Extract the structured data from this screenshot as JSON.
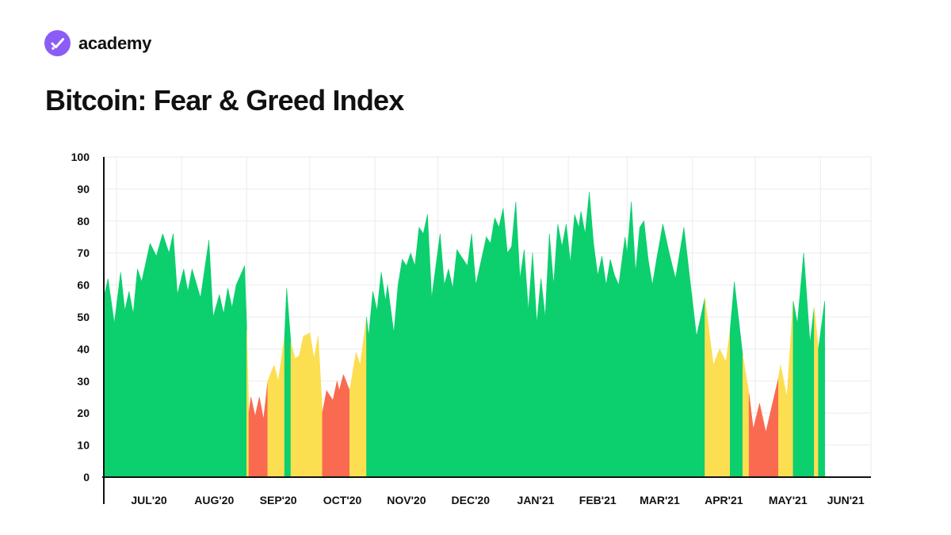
{
  "brand": {
    "name": "academy",
    "logo_icon": "checkmark-circle-icon",
    "logo_color": "#8b5cf6"
  },
  "page": {
    "title": "Bitcoin: Fear & Greed Index"
  },
  "colors": {
    "greed": "#0ccf6e",
    "neutral": "#fcde51",
    "fear": "#fa6a51",
    "grid": "#ebebeb",
    "axis": "#111111"
  },
  "chart_data": {
    "type": "area",
    "title": "Bitcoin: Fear & Greed Index",
    "xlabel": "",
    "ylabel": "",
    "ylim": [
      0,
      100
    ],
    "yticks": [
      "0",
      "10",
      "20",
      "30",
      "40",
      "50",
      "60",
      "70",
      "80",
      "90",
      "100"
    ],
    "xticks": [
      "JUL'20",
      "AUG'20",
      "SEP'20",
      "OCT'20",
      "NOV'20",
      "DEC'20",
      "JAN'21",
      "FEB'21",
      "MAR'21",
      "APR'21",
      "MAY'21",
      "JUN'21"
    ],
    "xlim": [
      "2020-06-25",
      "2021-06-25"
    ],
    "grid": true,
    "color_rule": "Approximate coloring: green above 47, yellow 30-47, red below 30",
    "series": [
      {
        "points": [
          [
            "2020-06-25",
            56
          ],
          [
            "2020-06-27",
            62
          ],
          [
            "2020-06-30",
            48
          ],
          [
            "2020-07-03",
            64
          ],
          [
            "2020-07-05",
            52
          ],
          [
            "2020-07-07",
            58
          ],
          [
            "2020-07-09",
            51
          ],
          [
            "2020-07-11",
            65
          ],
          [
            "2020-07-13",
            61
          ],
          [
            "2020-07-17",
            73
          ],
          [
            "2020-07-20",
            69
          ],
          [
            "2020-07-23",
            76
          ],
          [
            "2020-07-26",
            70
          ],
          [
            "2020-07-28",
            76
          ],
          [
            "2020-07-30",
            57
          ],
          [
            "2020-08-02",
            65
          ],
          [
            "2020-08-04",
            58
          ],
          [
            "2020-08-06",
            65
          ],
          [
            "2020-08-10",
            56
          ],
          [
            "2020-08-14",
            74
          ],
          [
            "2020-08-16",
            50
          ],
          [
            "2020-08-19",
            57
          ],
          [
            "2020-08-21",
            51
          ],
          [
            "2020-08-23",
            59
          ],
          [
            "2020-08-25",
            53
          ],
          [
            "2020-08-27",
            60
          ],
          [
            "2020-08-31",
            66
          ],
          [
            "2020-09-01",
            46
          ],
          [
            "2020-09-02",
            20
          ],
          [
            "2020-09-03",
            25
          ],
          [
            "2020-09-05",
            19
          ],
          [
            "2020-09-07",
            25
          ],
          [
            "2020-09-09",
            18
          ],
          [
            "2020-09-11",
            30
          ],
          [
            "2020-09-14",
            35
          ],
          [
            "2020-09-16",
            30
          ],
          [
            "2020-09-19",
            44
          ],
          [
            "2020-09-20",
            59
          ],
          [
            "2020-09-22",
            42
          ],
          [
            "2020-09-24",
            37
          ],
          [
            "2020-09-26",
            38
          ],
          [
            "2020-09-28",
            44
          ],
          [
            "2020-10-01",
            45
          ],
          [
            "2020-10-03",
            37
          ],
          [
            "2020-10-05",
            44
          ],
          [
            "2020-10-07",
            20
          ],
          [
            "2020-10-09",
            27
          ],
          [
            "2020-10-12",
            24
          ],
          [
            "2020-10-14",
            30
          ],
          [
            "2020-10-15",
            27
          ],
          [
            "2020-10-17",
            32
          ],
          [
            "2020-10-20",
            27
          ],
          [
            "2020-10-23",
            39
          ],
          [
            "2020-10-25",
            35
          ],
          [
            "2020-10-28",
            50
          ],
          [
            "2020-10-29",
            44
          ],
          [
            "2020-10-31",
            58
          ],
          [
            "2020-11-02",
            52
          ],
          [
            "2020-11-04",
            64
          ],
          [
            "2020-11-06",
            55
          ],
          [
            "2020-11-07",
            60
          ],
          [
            "2020-11-10",
            45
          ],
          [
            "2020-11-12",
            60
          ],
          [
            "2020-11-14",
            68
          ],
          [
            "2020-11-16",
            66
          ],
          [
            "2020-11-18",
            70
          ],
          [
            "2020-11-20",
            66
          ],
          [
            "2020-11-22",
            78
          ],
          [
            "2020-11-24",
            76
          ],
          [
            "2020-11-26",
            82
          ],
          [
            "2020-11-28",
            56
          ],
          [
            "2020-12-02",
            76
          ],
          [
            "2020-12-04",
            60
          ],
          [
            "2020-12-06",
            65
          ],
          [
            "2020-12-08",
            59
          ],
          [
            "2020-12-10",
            71
          ],
          [
            "2020-12-13",
            68
          ],
          [
            "2020-12-15",
            66
          ],
          [
            "2020-12-17",
            76
          ],
          [
            "2020-12-19",
            60
          ],
          [
            "2020-12-21",
            66
          ],
          [
            "2020-12-24",
            75
          ],
          [
            "2020-12-26",
            73
          ],
          [
            "2020-12-28",
            81
          ],
          [
            "2020-12-30",
            78
          ],
          [
            "2021-01-01",
            84
          ],
          [
            "2021-01-03",
            70
          ],
          [
            "2021-01-05",
            72
          ],
          [
            "2021-01-07",
            86
          ],
          [
            "2021-01-09",
            62
          ],
          [
            "2021-01-11",
            71
          ],
          [
            "2021-01-13",
            52
          ],
          [
            "2021-01-15",
            70
          ],
          [
            "2021-01-17",
            48
          ],
          [
            "2021-01-19",
            62
          ],
          [
            "2021-01-21",
            50
          ],
          [
            "2021-01-23",
            76
          ],
          [
            "2021-01-25",
            60
          ],
          [
            "2021-01-27",
            79
          ],
          [
            "2021-01-29",
            72
          ],
          [
            "2021-01-31",
            79
          ],
          [
            "2021-02-02",
            67
          ],
          [
            "2021-02-04",
            82
          ],
          [
            "2021-02-06",
            78
          ],
          [
            "2021-02-07",
            83
          ],
          [
            "2021-02-09",
            76
          ],
          [
            "2021-02-11",
            89
          ],
          [
            "2021-02-13",
            73
          ],
          [
            "2021-02-15",
            63
          ],
          [
            "2021-02-17",
            69
          ],
          [
            "2021-02-19",
            60
          ],
          [
            "2021-02-21",
            68
          ],
          [
            "2021-02-23",
            63
          ],
          [
            "2021-02-25",
            60
          ],
          [
            "2021-02-28",
            75
          ],
          [
            "2021-03-01",
            70
          ],
          [
            "2021-03-03",
            86
          ],
          [
            "2021-03-05",
            64
          ],
          [
            "2021-03-07",
            78
          ],
          [
            "2021-03-09",
            80
          ],
          [
            "2021-03-11",
            68
          ],
          [
            "2021-03-13",
            60
          ],
          [
            "2021-03-15",
            68
          ],
          [
            "2021-03-18",
            79
          ],
          [
            "2021-03-21",
            70
          ],
          [
            "2021-03-24",
            62
          ],
          [
            "2021-03-28",
            78
          ],
          [
            "2021-04-03",
            44
          ],
          [
            "2021-04-07",
            56
          ],
          [
            "2021-04-11",
            35
          ],
          [
            "2021-04-14",
            40
          ],
          [
            "2021-04-17",
            36
          ],
          [
            "2021-04-19",
            46
          ],
          [
            "2021-04-21",
            61
          ],
          [
            "2021-04-25",
            38
          ],
          [
            "2021-04-28",
            26
          ],
          [
            "2021-04-30",
            15
          ],
          [
            "2021-05-03",
            23
          ],
          [
            "2021-05-06",
            14
          ],
          [
            "2021-05-12",
            31
          ],
          [
            "2021-05-13",
            35
          ],
          [
            "2021-05-16",
            25
          ],
          [
            "2021-05-19",
            55
          ],
          [
            "2021-05-21",
            48
          ],
          [
            "2021-05-24",
            70
          ],
          [
            "2021-05-27",
            42
          ],
          [
            "2021-05-29",
            53
          ],
          [
            "2021-05-31",
            40
          ],
          [
            "2021-06-03",
            55
          ]
        ]
      }
    ]
  }
}
